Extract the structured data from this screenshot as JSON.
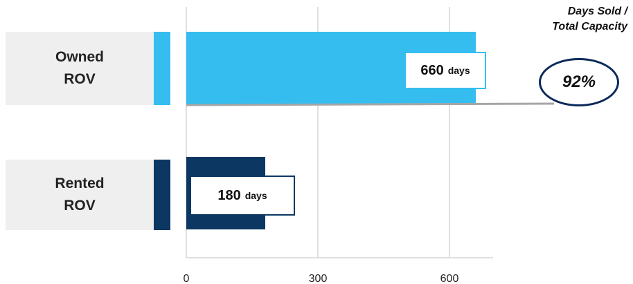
{
  "chart_data": {
    "type": "bar",
    "orientation": "horizontal",
    "categories": [
      "Owned\nROV",
      "Rented\nROV"
    ],
    "values": [
      660,
      180
    ],
    "value_unit": "days",
    "xlim": [
      0,
      700
    ],
    "x_ticks": [
      0,
      300,
      600
    ],
    "grid": true,
    "side_title": "Days Sold /\nTotal Capacity",
    "ratio_label": "92%",
    "colors": {
      "owned": "#35bdf0",
      "rented": "#0b3762",
      "grid": "#d6d6d6",
      "reference_line": "#a6a6a6",
      "oval": "#0b2a5a"
    }
  }
}
